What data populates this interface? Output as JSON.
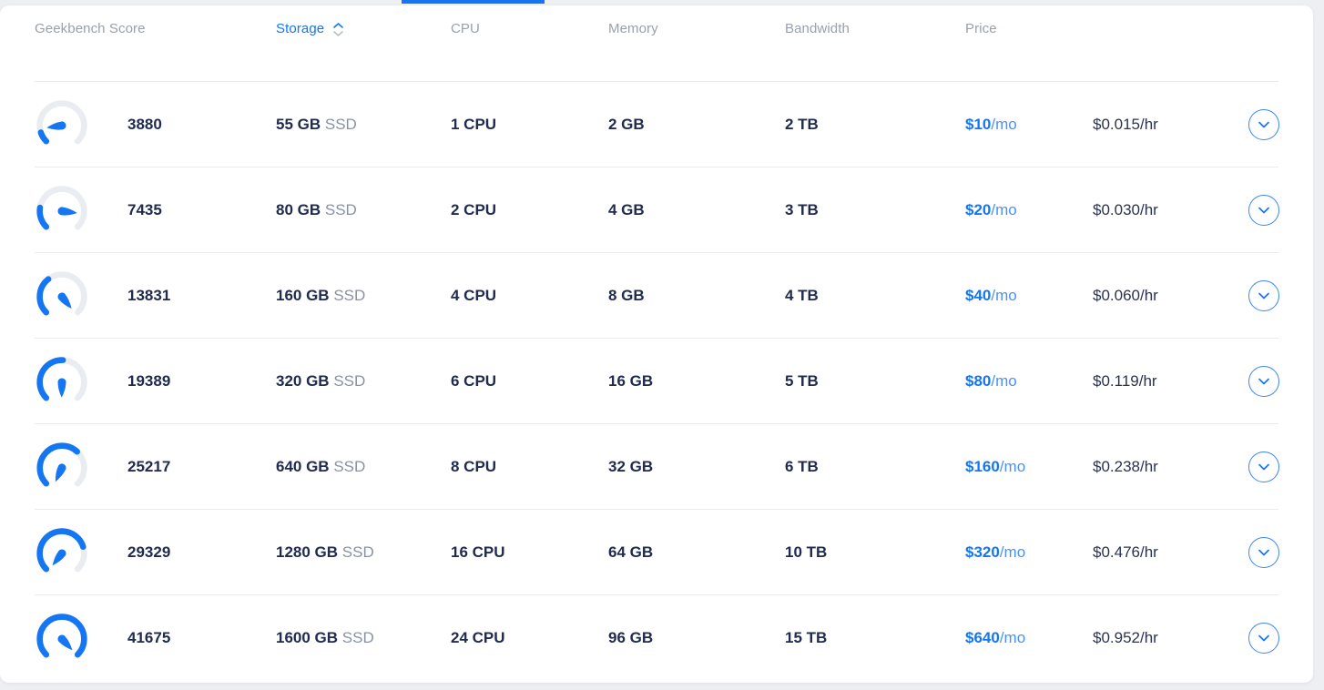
{
  "page": {
    "background": "#edeff3",
    "card_background": "#ffffff"
  },
  "tabs": {
    "active_tab_underline_color": "#1476f2"
  },
  "colors": {
    "accent_blue": "#1476f2",
    "dark_navy_text": "#212b4f",
    "muted_gray_text": "#98a1ac",
    "gauge_track": "#e9edf2",
    "row_divider": "#e8ebef"
  },
  "table": {
    "columns": [
      {
        "key": "score",
        "label": "Geekbench Score",
        "sorted": false
      },
      {
        "key": "storage",
        "label": "Storage",
        "sorted": true
      },
      {
        "key": "cpu",
        "label": "CPU",
        "sorted": false
      },
      {
        "key": "memory",
        "label": "Memory",
        "sorted": false
      },
      {
        "key": "bandwidth",
        "label": "Bandwidth",
        "sorted": false
      },
      {
        "key": "price",
        "label": "Price",
        "sorted": false
      }
    ],
    "sort_icon": "sort-up-down-chevrons",
    "row_icon": "speedometer-gauge",
    "rows": [
      {
        "score": "3880",
        "storage": "55 GB",
        "storage_type": "SSD",
        "cpu": "1 CPU",
        "memory": "2 GB",
        "bandwidth": "2 TB",
        "price": "$10",
        "price_suffix": "/mo",
        "hourly": "$0.015/hr",
        "gauge": {
          "fraction": 0.1,
          "needle_angle": 262
        }
      },
      {
        "score": "7435",
        "storage": "80 GB",
        "storage_type": "SSD",
        "cpu": "2 CPU",
        "memory": "4 GB",
        "bandwidth": "3 TB",
        "price": "$20",
        "price_suffix": "/mo",
        "hourly": "$0.030/hr",
        "gauge": {
          "fraction": 0.2,
          "needle_angle": 97
        }
      },
      {
        "score": "13831",
        "storage": "160 GB",
        "storage_type": "SSD",
        "cpu": "4 CPU",
        "memory": "8 GB",
        "bandwidth": "4 TB",
        "price": "$40",
        "price_suffix": "/mo",
        "hourly": "$0.060/hr",
        "gauge": {
          "fraction": 0.36,
          "needle_angle": 141
        }
      },
      {
        "score": "19389",
        "storage": "320 GB",
        "storage_type": "SSD",
        "cpu": "6 CPU",
        "memory": "16 GB",
        "bandwidth": "5 TB",
        "price": "$80",
        "price_suffix": "/mo",
        "hourly": "$0.119/hr",
        "gauge": {
          "fraction": 0.51,
          "needle_angle": 181
        }
      },
      {
        "score": "25217",
        "storage": "640 GB",
        "storage_type": "SSD",
        "cpu": "8 CPU",
        "memory": "32 GB",
        "bandwidth": "6 TB",
        "price": "$160",
        "price_suffix": "/mo",
        "hourly": "$0.238/hr",
        "gauge": {
          "fraction": 0.66,
          "needle_angle": 205
        }
      },
      {
        "score": "29329",
        "storage": "1280 GB",
        "storage_type": "SSD",
        "cpu": "16 CPU",
        "memory": "64 GB",
        "bandwidth": "10 TB",
        "price": "$320",
        "price_suffix": "/mo",
        "hourly": "$0.476/hr",
        "gauge": {
          "fraction": 0.77,
          "needle_angle": 218
        }
      },
      {
        "score": "41675",
        "storage": "1600 GB",
        "storage_type": "SSD",
        "cpu": "24 CPU",
        "memory": "96 GB",
        "bandwidth": "15 TB",
        "price": "$640",
        "price_suffix": "/mo",
        "hourly": "$0.952/hr",
        "gauge": {
          "fraction": 1.0,
          "needle_angle": 137
        }
      }
    ]
  }
}
